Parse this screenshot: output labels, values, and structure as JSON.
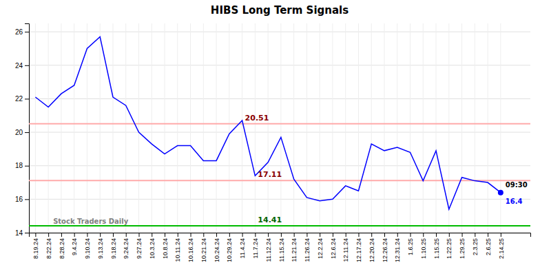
{
  "chart_data": {
    "type": "line",
    "title": "HIBS Long Term Signals",
    "categories": [
      "8.19.24",
      "8.22.24",
      "8.28.24",
      "9.4.24",
      "9.10.24",
      "9.13.24",
      "9.18.24",
      "9.24.24",
      "9.27.24",
      "10.3.24",
      "10.8.24",
      "10.11.24",
      "10.16.24",
      "10.21.24",
      "10.24.24",
      "10.29.24",
      "11.4.24",
      "11.7.24",
      "11.12.24",
      "11.15.24",
      "11.21.24",
      "11.26.24",
      "12.2.24",
      "12.6.24",
      "12.11.24",
      "12.17.24",
      "12.20.24",
      "12.26.24",
      "12.31.24",
      "1.6.25",
      "1.10.25",
      "1.15.25",
      "1.22.25",
      "1.29.25",
      "2.3.25",
      "2.6.25",
      "2.14.25"
    ],
    "series": [
      {
        "color": "blue",
        "values": [
          22.1,
          21.5,
          22.3,
          22.8,
          25.0,
          25.7,
          22.1,
          21.6,
          20.0,
          19.3,
          18.7,
          19.2,
          19.2,
          18.3,
          18.3,
          19.9,
          20.7,
          17.4,
          18.2,
          19.7,
          17.2,
          16.1,
          15.9,
          16.0,
          16.8,
          16.5,
          19.3,
          18.9,
          19.1,
          18.8,
          17.1,
          18.9,
          15.4,
          17.3,
          17.1,
          17.0,
          16.4
        ]
      }
    ],
    "hlines": [
      {
        "value": 20.51,
        "color": "#ffaaaa",
        "label": "20.51",
        "label_color": "darkred",
        "x": "11.4.24"
      },
      {
        "value": 17.11,
        "color": "#ffaaaa",
        "label": "17.11",
        "label_color": "darkred",
        "x": "11.7.24"
      },
      {
        "value": 14.41,
        "color": "#00bb00",
        "label": "14.41",
        "label_color": "darkgreen",
        "x": "11.7.24"
      }
    ],
    "annotations": [
      {
        "text": "09:30",
        "x": "2.14.25",
        "y": 16.4,
        "color": "black"
      },
      {
        "text": "16.4",
        "x": "2.14.25",
        "y": 16.4,
        "color": "blue"
      },
      {
        "text": "Stock Traders Daily",
        "x": "8.22.24",
        "y": 14.2,
        "color": "gray"
      }
    ],
    "ylim": [
      14.0,
      26.5
    ],
    "yticks": [
      14,
      16,
      18,
      20,
      22,
      24,
      26
    ],
    "grid": true
  }
}
